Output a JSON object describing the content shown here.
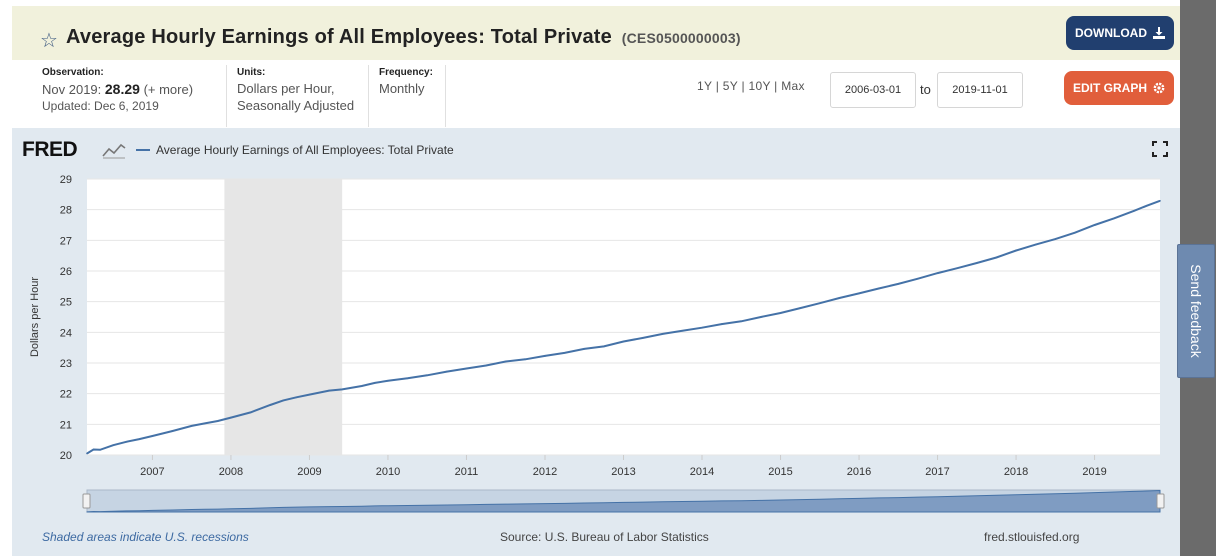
{
  "header": {
    "title": "Average Hourly Earnings of All Employees: Total Private",
    "series_id": "(CES0500000003)",
    "download_label": "DOWNLOAD",
    "star_icon": "star-outline-icon",
    "download_icon": "download-icon"
  },
  "meta": {
    "observation_label": "Observation:",
    "observation_date": "Nov 2019:",
    "observation_value": "28.29",
    "observation_more": "(+ more)",
    "updated": "Updated: Dec 6, 2019",
    "units_label": "Units:",
    "units_line1": "Dollars per Hour,",
    "units_line2": "Seasonally Adjusted",
    "frequency_label": "Frequency:",
    "frequency_value": "Monthly"
  },
  "controls": {
    "range_1y": "1Y",
    "range_5y": "5Y",
    "range_10y": "10Y",
    "range_max": "Max",
    "start_date": "2006-03-01",
    "to_label": "to",
    "end_date": "2019-11-01",
    "edit_label": "EDIT GRAPH",
    "edit_icon": "gear-icon"
  },
  "chart_header": {
    "logo_text": "FRED",
    "legend_label": "Average Hourly Earnings of All Employees: Total Private"
  },
  "feedback_label": "Send feedback",
  "footer": {
    "recession_note": "Shaded areas indicate U.S. recessions",
    "source": "Source: U.S. Bureau of Labor Statistics",
    "url": "fred.stlouisfed.org"
  },
  "colors": {
    "line": "#4572a7",
    "recession": "#e6e6e6",
    "download_button": "#213f6f",
    "edit_button": "#e15e3b",
    "panel": "#e1e9f0"
  },
  "chart_data": {
    "type": "line",
    "title": "Average Hourly Earnings of All Employees: Total Private",
    "xlabel": "",
    "ylabel": "Dollars per Hour",
    "x_range": [
      2006.1667,
      2019.8333
    ],
    "ylim": [
      20,
      29
    ],
    "y_ticks": [
      20,
      21,
      22,
      23,
      24,
      25,
      26,
      27,
      28,
      29
    ],
    "x_tick_labels": [
      "2007",
      "2008",
      "2009",
      "2010",
      "2011",
      "2012",
      "2013",
      "2014",
      "2015",
      "2016",
      "2017",
      "2018",
      "2019"
    ],
    "x_tick_values": [
      2007,
      2008,
      2009,
      2010,
      2011,
      2012,
      2013,
      2014,
      2015,
      2016,
      2017,
      2018,
      2019
    ],
    "recessions": [
      {
        "start": 2007.9167,
        "end": 2009.4167
      }
    ],
    "series": [
      {
        "name": "Average Hourly Earnings of All Employees: Total Private",
        "x": [
          2006.1667,
          2006.25,
          2006.3333,
          2006.5,
          2006.6667,
          2006.8333,
          2007.0,
          2007.25,
          2007.5,
          2007.6667,
          2007.8333,
          2008.0,
          2008.25,
          2008.5,
          2008.6667,
          2008.8333,
          2009.0,
          2009.25,
          2009.4167,
          2009.6667,
          2009.8333,
          2010.0,
          2010.25,
          2010.5,
          2010.75,
          2011.0,
          2011.25,
          2011.5,
          2011.75,
          2012.0,
          2012.25,
          2012.5,
          2012.75,
          2013.0,
          2013.25,
          2013.5,
          2013.75,
          2014.0,
          2014.25,
          2014.5,
          2014.75,
          2015.0,
          2015.25,
          2015.5,
          2015.75,
          2016.0,
          2016.25,
          2016.5,
          2016.75,
          2017.0,
          2017.25,
          2017.5,
          2017.75,
          2018.0,
          2018.25,
          2018.5,
          2018.75,
          2019.0,
          2019.25,
          2019.5,
          2019.6667,
          2019.8333
        ],
        "values": [
          20.05,
          20.18,
          20.17,
          20.32,
          20.43,
          20.52,
          20.62,
          20.78,
          20.95,
          21.03,
          21.11,
          21.22,
          21.39,
          21.63,
          21.78,
          21.88,
          21.97,
          22.1,
          22.14,
          22.25,
          22.35,
          22.42,
          22.5,
          22.6,
          22.72,
          22.82,
          22.92,
          23.05,
          23.12,
          23.23,
          23.33,
          23.46,
          23.54,
          23.7,
          23.82,
          23.95,
          24.05,
          24.15,
          24.27,
          24.36,
          24.5,
          24.63,
          24.79,
          24.95,
          25.12,
          25.27,
          25.43,
          25.58,
          25.75,
          25.93,
          26.09,
          26.26,
          26.44,
          26.67,
          26.86,
          27.04,
          27.25,
          27.5,
          27.72,
          27.96,
          28.13,
          28.29
        ]
      }
    ]
  }
}
